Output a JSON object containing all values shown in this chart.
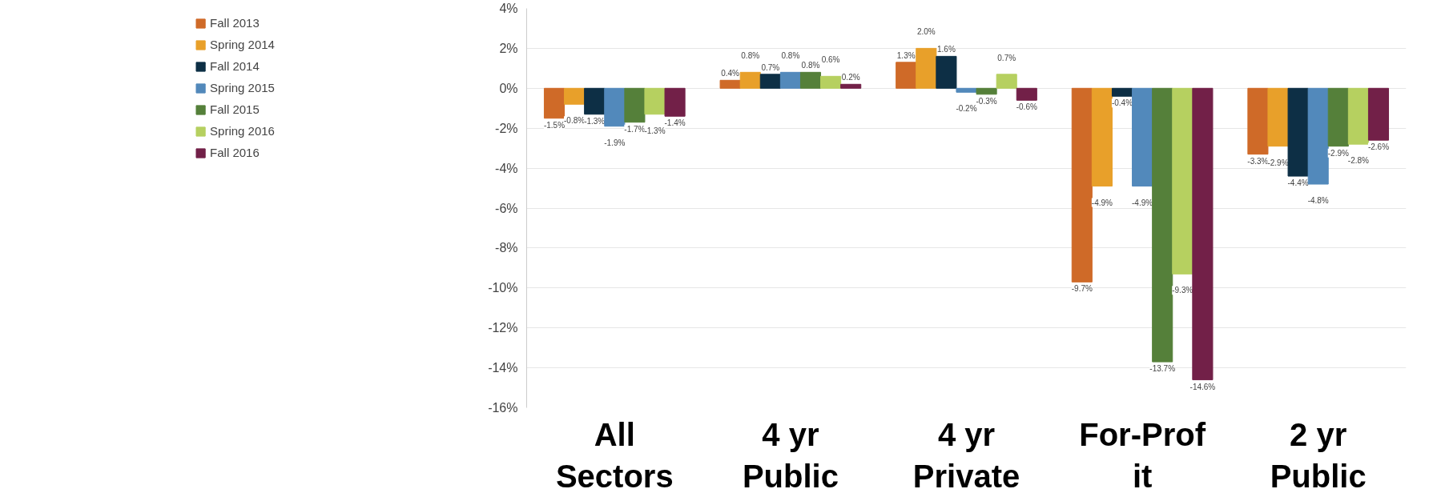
{
  "chart_data": {
    "type": "bar",
    "categories": [
      "All Sectors",
      "4 yr Public",
      "4 yr Private",
      "For-Prof it",
      "2 yr Public"
    ],
    "ylim": [
      -16,
      4
    ],
    "yticks": [
      {
        "value": 4,
        "label": "4%"
      },
      {
        "value": 2,
        "label": "2%"
      },
      {
        "value": 0,
        "label": "0%"
      },
      {
        "value": -2,
        "label": "-2%"
      },
      {
        "value": -4,
        "label": "-4%"
      },
      {
        "value": -6,
        "label": "-6%"
      },
      {
        "value": -8,
        "label": "-8%"
      },
      {
        "value": -10,
        "label": "-10%"
      },
      {
        "value": -12,
        "label": "-12%"
      },
      {
        "value": -14,
        "label": "-14%"
      },
      {
        "value": -16,
        "label": "-16%"
      }
    ],
    "grid": "y",
    "legend": "left",
    "series": [
      {
        "name": "Fall 2013",
        "color": "#cf6a28",
        "values": [
          -1.5,
          0.4,
          1.3,
          -9.7,
          -3.3
        ],
        "value_labels": [
          "-1.5%",
          "0.4%",
          "1.3%",
          "-9.7%",
          "-3.3%"
        ]
      },
      {
        "name": "Spring 2014",
        "color": "#e8a02a",
        "values": [
          -0.8,
          0.8,
          2.0,
          -4.9,
          -2.9
        ],
        "value_labels": [
          "-0.8%",
          "0.8%",
          "2.0%",
          "-4.9%",
          "-2.9%"
        ]
      },
      {
        "name": "Fall 2014",
        "color": "#0d2f45",
        "values": [
          -1.3,
          0.7,
          1.6,
          -0.4,
          -4.4
        ],
        "value_labels": [
          "-1.3%",
          "0.7%",
          "1.6%",
          "-0.4%",
          "-4.4%"
        ]
      },
      {
        "name": "Spring 2015",
        "color": "#5289bb",
        "values": [
          -1.9,
          0.8,
          -0.2,
          -4.9,
          -4.8
        ],
        "value_labels": [
          "-1.9%",
          "0.8%",
          "-0.2%",
          "-4.9%",
          "-4.8%"
        ]
      },
      {
        "name": "Fall 2015",
        "color": "#55803a",
        "values": [
          -1.7,
          0.8,
          -0.3,
          -13.7,
          -2.9
        ],
        "value_labels": [
          "-1.7%",
          "0.8%",
          "-0.3%",
          "-13.7%",
          "-2.9%"
        ]
      },
      {
        "name": "Spring 2016",
        "color": "#b6d060",
        "values": [
          -1.3,
          0.6,
          0.7,
          -9.3,
          -2.8
        ],
        "value_labels": [
          "-1.3%",
          "0.6%",
          "0.7%",
          "-9.3%",
          "-2.8%"
        ]
      },
      {
        "name": "Fall 2016",
        "color": "#722048",
        "values": [
          -1.4,
          0.2,
          -0.6,
          -14.6,
          -2.6
        ],
        "value_labels": [
          "-1.4%",
          "0.2%",
          "-0.6%",
          "-14.6%",
          "-2.6%"
        ]
      }
    ]
  }
}
